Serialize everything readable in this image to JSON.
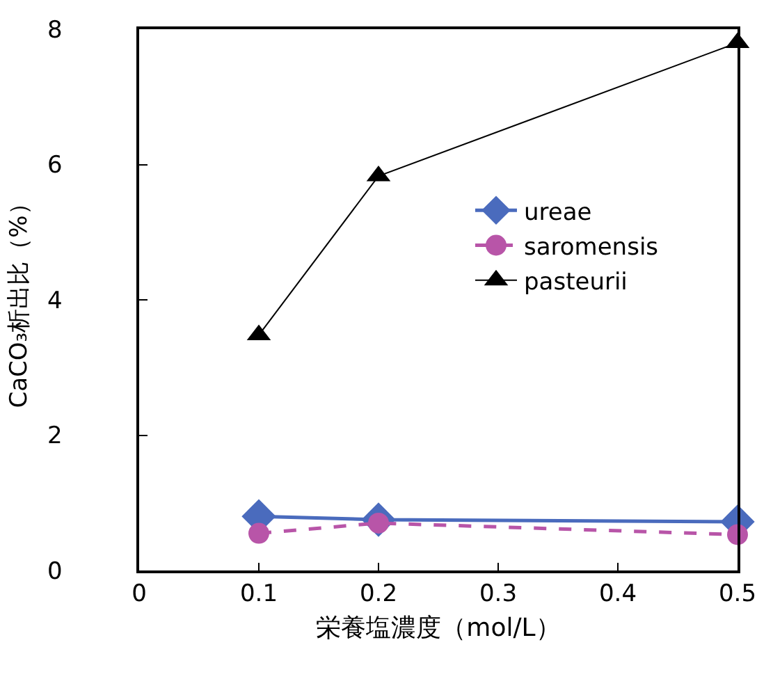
{
  "chart_data": {
    "type": "line",
    "xlabel": "栄養塩濃度（mol/L）",
    "ylabel": "CaCO₃析出比（%）",
    "x": [
      0.1,
      0.2,
      0.5
    ],
    "xlim": [
      0,
      0.5
    ],
    "xticks": [
      0,
      0.1,
      0.2,
      0.3,
      0.4,
      0.5
    ],
    "ylim": [
      0,
      8
    ],
    "yticks": [
      0,
      2,
      4,
      6,
      8
    ],
    "grid": false,
    "legend": "right",
    "series": [
      {
        "name": "ureae",
        "color": "#4a6bbd",
        "values": [
          0.8,
          0.75,
          0.72
        ],
        "marker": "diamond",
        "line_style": "solid"
      },
      {
        "name": "saromensis",
        "color": "#b855a8",
        "values": [
          0.55,
          0.7,
          0.53
        ],
        "marker": "circle",
        "line_style": "dashed"
      },
      {
        "name": "pasteurii",
        "color": "#000000",
        "values": [
          3.48,
          5.83,
          7.8
        ],
        "marker": "triangle",
        "line_style": "solid"
      }
    ]
  }
}
